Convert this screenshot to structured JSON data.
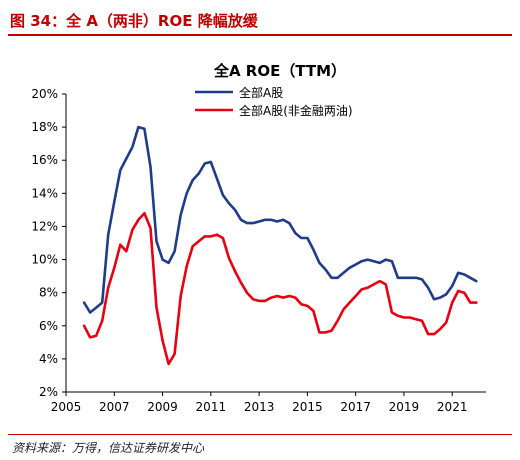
{
  "figure": {
    "caption": "图 34：全 A（两非）ROE 降幅放缓",
    "source": "资料来源：万得，信达证券研发中心"
  },
  "colors": {
    "accent": "#c00000",
    "series1": "#1f3c88",
    "series2": "#e60012"
  },
  "chart_data": {
    "type": "line",
    "title": "全A ROE（TTM）",
    "xlabel": "",
    "ylabel": "",
    "xlim": [
      2005,
      2022.4
    ],
    "ylim": [
      2,
      20
    ],
    "x_ticks": [
      2005,
      2007,
      2009,
      2011,
      2013,
      2015,
      2017,
      2019,
      2021
    ],
    "y_ticks": [
      2,
      4,
      6,
      8,
      10,
      12,
      14,
      16,
      18,
      20
    ],
    "y_tick_format": "percent",
    "grid": false,
    "legend_position": "top-center",
    "x": [
      2005.75,
      2006.0,
      2006.25,
      2006.5,
      2006.75,
      2007.0,
      2007.25,
      2007.5,
      2007.75,
      2008.0,
      2008.25,
      2008.5,
      2008.75,
      2009.0,
      2009.25,
      2009.5,
      2009.75,
      2010.0,
      2010.25,
      2010.5,
      2010.75,
      2011.0,
      2011.25,
      2011.5,
      2011.75,
      2012.0,
      2012.25,
      2012.5,
      2012.75,
      2013.0,
      2013.25,
      2013.5,
      2013.75,
      2014.0,
      2014.25,
      2014.5,
      2014.75,
      2015.0,
      2015.25,
      2015.5,
      2015.75,
      2016.0,
      2016.25,
      2016.5,
      2016.75,
      2017.0,
      2017.25,
      2017.5,
      2017.75,
      2018.0,
      2018.25,
      2018.5,
      2018.75,
      2019.0,
      2019.25,
      2019.5,
      2019.75,
      2020.0,
      2020.25,
      2020.5,
      2020.75,
      2021.0,
      2021.25,
      2021.5,
      2021.75,
      2022.0
    ],
    "series": [
      {
        "name": "全部A股",
        "color": "#1f3c88",
        "values": [
          7.4,
          6.8,
          7.1,
          7.4,
          11.5,
          13.5,
          15.4,
          16.1,
          16.8,
          18.0,
          17.9,
          15.6,
          11.1,
          10.0,
          9.8,
          10.5,
          12.7,
          14.0,
          14.8,
          15.2,
          15.8,
          15.9,
          14.9,
          13.9,
          13.4,
          13.0,
          12.4,
          12.2,
          12.2,
          12.3,
          12.4,
          12.4,
          12.3,
          12.4,
          12.2,
          11.6,
          11.3,
          11.3,
          10.6,
          9.8,
          9.4,
          8.9,
          8.9,
          9.2,
          9.5,
          9.7,
          9.9,
          10.0,
          9.9,
          9.8,
          10.0,
          9.9,
          8.9,
          8.9,
          8.9,
          8.9,
          8.8,
          8.3,
          7.6,
          7.7,
          7.9,
          8.4,
          9.2,
          9.1,
          8.9,
          8.7
        ]
      },
      {
        "name": "全部A股(非金融两油)",
        "color": "#e60012",
        "values": [
          6.0,
          5.3,
          5.4,
          6.3,
          8.3,
          9.5,
          10.9,
          10.5,
          11.8,
          12.4,
          12.8,
          11.9,
          7.1,
          5.1,
          3.7,
          4.3,
          7.8,
          9.6,
          10.8,
          11.1,
          11.4,
          11.4,
          11.5,
          11.3,
          10.1,
          9.3,
          8.6,
          8.0,
          7.6,
          7.5,
          7.5,
          7.7,
          7.8,
          7.7,
          7.8,
          7.7,
          7.3,
          7.2,
          6.9,
          5.6,
          5.6,
          5.7,
          6.3,
          7.0,
          7.4,
          7.8,
          8.2,
          8.3,
          8.5,
          8.7,
          8.5,
          6.8,
          6.6,
          6.5,
          6.5,
          6.4,
          6.3,
          5.5,
          5.5,
          5.8,
          6.2,
          7.4,
          8.1,
          8.0,
          7.4,
          7.4
        ]
      }
    ]
  }
}
